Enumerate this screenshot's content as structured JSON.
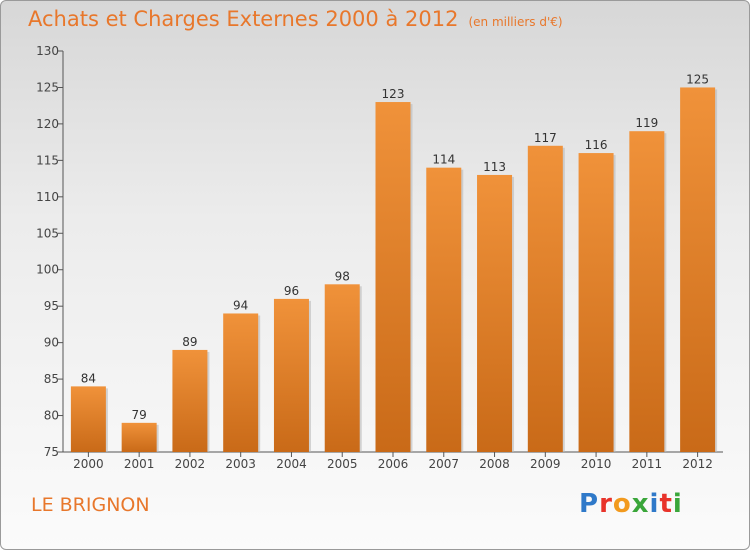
{
  "header": {
    "title": "Achats et Charges Externes 2000 à 2012",
    "unit": "(en milliers d'€)"
  },
  "commune": "LE BRIGNON",
  "logo": {
    "text": "Proxiti",
    "colors": [
      "#2f79c9",
      "#e8332a",
      "#f29a1e",
      "#3aa63a",
      "#2f79c9",
      "#e8332a",
      "#3aa63a"
    ]
  },
  "chart_data": {
    "type": "bar",
    "title": "Achats et Charges Externes 2000 à 2012",
    "categories": [
      "2000",
      "2001",
      "2002",
      "2003",
      "2004",
      "2005",
      "2006",
      "2007",
      "2008",
      "2009",
      "2010",
      "2011",
      "2012"
    ],
    "values": [
      84,
      79,
      89,
      94,
      96,
      98,
      123,
      114,
      113,
      117,
      116,
      119,
      125
    ],
    "ylim": [
      75,
      130
    ],
    "yticks": [
      75,
      80,
      85,
      90,
      95,
      100,
      105,
      110,
      115,
      120,
      125,
      130
    ],
    "grid": false,
    "bar_color": "#f0923a",
    "bar_color_dark": "#c96a18"
  }
}
